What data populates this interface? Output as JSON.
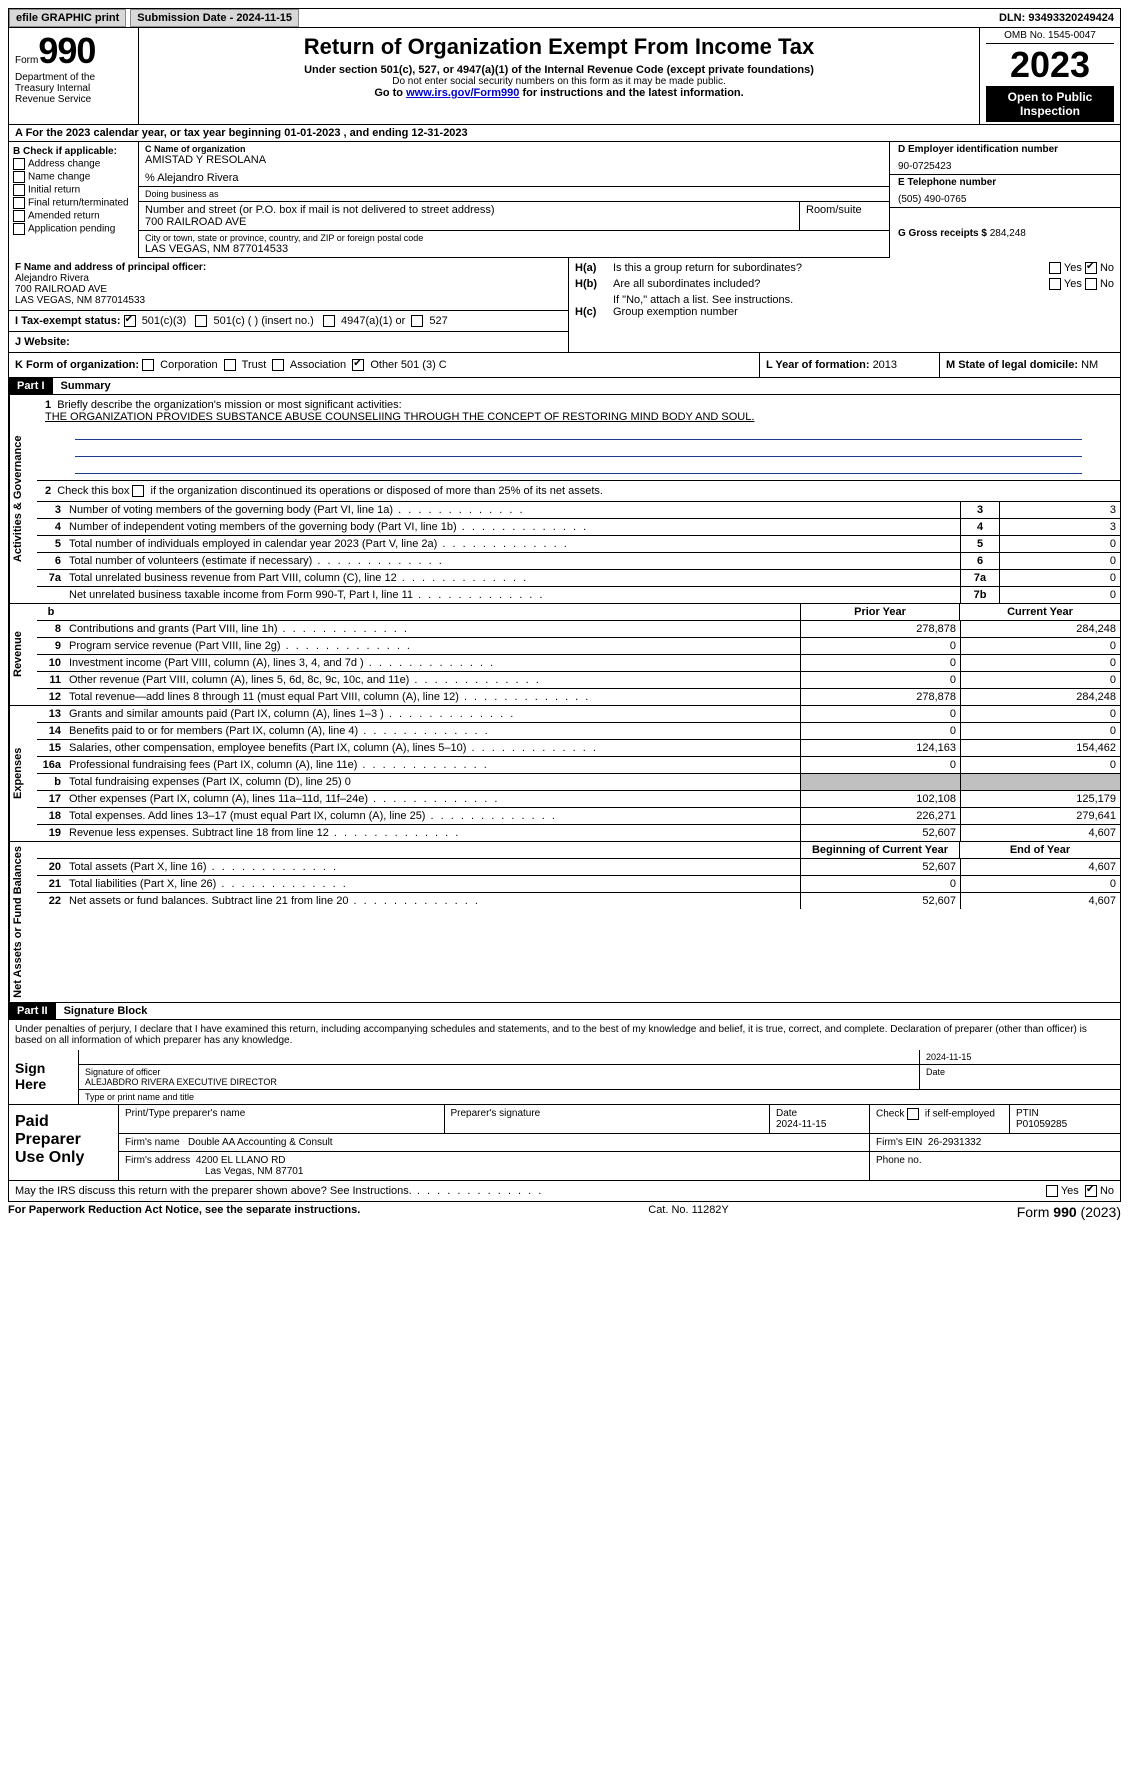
{
  "topbar": {
    "efile": "efile GRAPHIC print",
    "submission_label": "Submission Date - 2024-11-15",
    "dln_label": "DLN: 93493320249424"
  },
  "header": {
    "form_word": "Form",
    "form_num": "990",
    "dept": "Department of the Treasury Internal Revenue Service",
    "title": "Return of Organization Exempt From Income Tax",
    "subtitle": "Under section 501(c), 527, or 4947(a)(1) of the Internal Revenue Code (except private foundations)",
    "ssn_note": "Do not enter social security numbers on this form as it may be made public.",
    "goto_pre": "Go to ",
    "goto_link": "www.irs.gov/Form990",
    "goto_post": " for instructions and the latest information.",
    "omb": "OMB No. 1545-0047",
    "year": "2023",
    "open": "Open to Public Inspection"
  },
  "row_a": {
    "text_pre": "A For the 2023 calendar year, or tax year beginning ",
    "begin": "01-01-2023",
    "mid": " , and ending ",
    "end": "12-31-2023"
  },
  "col_b": {
    "header": "B Check if applicable:",
    "items": [
      "Address change",
      "Name change",
      "Initial return",
      "Final return/terminated",
      "Amended return",
      "Application pending"
    ]
  },
  "col_c": {
    "name_lbl": "C Name of organization",
    "name": "AMISTAD Y RESOLANA",
    "care_of": "% Alejandro Rivera",
    "dba_lbl": "Doing business as",
    "dba": "",
    "street_lbl": "Number and street (or P.O. box if mail is not delivered to street address)",
    "street": "700 RAILROAD AVE",
    "room_lbl": "Room/suite",
    "room": "",
    "city_lbl": "City or town, state or province, country, and ZIP or foreign postal code",
    "city": "LAS VEGAS, NM  877014533"
  },
  "col_d": {
    "ein_lbl": "D Employer identification number",
    "ein": "90-0725423",
    "phone_lbl": "E Telephone number",
    "phone": "(505) 490-0765",
    "gross_lbl": "G Gross receipts $ ",
    "gross": "284,248"
  },
  "section_f": {
    "lbl": "F Name and address of principal officer:",
    "name": "Alejandro Rivera",
    "street": "700 RAILROAD AVE",
    "city": "LAS VEGAS, NM  877014533"
  },
  "section_i": {
    "lbl": "I   Tax-exempt status:",
    "opt1": "501(c)(3)",
    "opt2": "501(c) (  ) (insert no.)",
    "opt3": "4947(a)(1) or",
    "opt4": "527"
  },
  "section_j": {
    "lbl": "J   Website:",
    "val": ""
  },
  "section_h": {
    "ha_lbl": "H(a)",
    "ha_text": "Is this a group return for subordinates?",
    "hb_lbl": "H(b)",
    "hb_text": "Are all subordinates included?",
    "hb_note": "If \"No,\" attach a list. See instructions.",
    "hc_lbl": "H(c)",
    "hc_text": "Group exemption number",
    "yes": "Yes",
    "no": "No"
  },
  "row_k": {
    "k_lbl": "K Form of organization:",
    "k_opts": [
      "Corporation",
      "Trust",
      "Association",
      "Other 501 (3) C"
    ],
    "l_lbl": "L Year of formation: ",
    "l_val": "2013",
    "m_lbl": "M State of legal domicile: ",
    "m_val": "NM"
  },
  "parts": {
    "p1": "Part I",
    "p1_title": "Summary",
    "p2": "Part II",
    "p2_title": "Signature Block"
  },
  "summary": {
    "gov_label": "Activities & Governance",
    "rev_label": "Revenue",
    "exp_label": "Expenses",
    "net_label": "Net Assets or Fund Balances",
    "line1_lbl": "Briefly describe the organization's mission or most significant activities:",
    "line1_val": "THE ORGANIZATION PROVIDES SUBSTANCE ABUSE COUNSELIING THROUGH THE CONCEPT OF RESTORING MIND BODY AND SOUL.",
    "line2": "Check this box      if the organization discontinued its operations or disposed of more than 25% of its net assets.",
    "lines_gov": [
      {
        "n": "3",
        "t": "Number of voting members of the governing body (Part VI, line 1a)",
        "box": "3",
        "v": "3"
      },
      {
        "n": "4",
        "t": "Number of independent voting members of the governing body (Part VI, line 1b)",
        "box": "4",
        "v": "3"
      },
      {
        "n": "5",
        "t": "Total number of individuals employed in calendar year 2023 (Part V, line 2a)",
        "box": "5",
        "v": "0"
      },
      {
        "n": "6",
        "t": "Total number of volunteers (estimate if necessary)",
        "box": "6",
        "v": "0"
      },
      {
        "n": "7a",
        "t": "Total unrelated business revenue from Part VIII, column (C), line 12",
        "box": "7a",
        "v": "0"
      },
      {
        "n": "",
        "t": "Net unrelated business taxable income from Form 990-T, Part I, line 11",
        "box": "7b",
        "v": "0"
      }
    ],
    "b_header": {
      "py": "Prior Year",
      "cy": "Current Year"
    },
    "lines_rev": [
      {
        "n": "8",
        "t": "Contributions and grants (Part VIII, line 1h)",
        "py": "278,878",
        "cy": "284,248"
      },
      {
        "n": "9",
        "t": "Program service revenue (Part VIII, line 2g)",
        "py": "0",
        "cy": "0"
      },
      {
        "n": "10",
        "t": "Investment income (Part VIII, column (A), lines 3, 4, and 7d )",
        "py": "0",
        "cy": "0"
      },
      {
        "n": "11",
        "t": "Other revenue (Part VIII, column (A), lines 5, 6d, 8c, 9c, 10c, and 11e)",
        "py": "0",
        "cy": "0"
      },
      {
        "n": "12",
        "t": "Total revenue—add lines 8 through 11 (must equal Part VIII, column (A), line 12)",
        "py": "278,878",
        "cy": "284,248"
      }
    ],
    "lines_exp": [
      {
        "n": "13",
        "t": "Grants and similar amounts paid (Part IX, column (A), lines 1–3 )",
        "py": "0",
        "cy": "0"
      },
      {
        "n": "14",
        "t": "Benefits paid to or for members (Part IX, column (A), line 4)",
        "py": "0",
        "cy": "0"
      },
      {
        "n": "15",
        "t": "Salaries, other compensation, employee benefits (Part IX, column (A), lines 5–10)",
        "py": "124,163",
        "cy": "154,462"
      },
      {
        "n": "16a",
        "t": "Professional fundraising fees (Part IX, column (A), line 11e)",
        "py": "0",
        "cy": "0"
      },
      {
        "n": "b",
        "t": "Total fundraising expenses (Part IX, column (D), line 25) 0",
        "py": "",
        "cy": "",
        "grey": true
      },
      {
        "n": "17",
        "t": "Other expenses (Part IX, column (A), lines 11a–11d, 11f–24e)",
        "py": "102,108",
        "cy": "125,179"
      },
      {
        "n": "18",
        "t": "Total expenses. Add lines 13–17 (must equal Part IX, column (A), line 25)",
        "py": "226,271",
        "cy": "279,641"
      },
      {
        "n": "19",
        "t": "Revenue less expenses. Subtract line 18 from line 12",
        "py": "52,607",
        "cy": "4,607"
      }
    ],
    "net_header": {
      "py": "Beginning of Current Year",
      "cy": "End of Year"
    },
    "lines_net": [
      {
        "n": "20",
        "t": "Total assets (Part X, line 16)",
        "py": "52,607",
        "cy": "4,607"
      },
      {
        "n": "21",
        "t": "Total liabilities (Part X, line 26)",
        "py": "0",
        "cy": "0"
      },
      {
        "n": "22",
        "t": "Net assets or fund balances. Subtract line 21 from line 20",
        "py": "52,607",
        "cy": "4,607"
      }
    ]
  },
  "sig": {
    "perjury": "Under penalties of perjury, I declare that I have examined this return, including accompanying schedules and statements, and to the best of my knowledge and belief, it is true, correct, and complete. Declaration of preparer (other than officer) is based on all information of which preparer has any knowledge.",
    "sign_here": "Sign Here",
    "sig_officer_lbl": "Signature of officer",
    "sig_officer": "ALEJABDRO RIVERA  EXECUTIVE DIRECTOR",
    "sig_type_lbl": "Type or print name and title",
    "date_lbl": "Date",
    "date_val": "2024-11-15"
  },
  "paid": {
    "label": "Paid Preparer Use Only",
    "r1": {
      "print_lbl": "Print/Type preparer's name",
      "print": "",
      "sig_lbl": "Preparer's signature",
      "date_lbl": "Date",
      "date": "2024-11-15",
      "check_lbl": "Check        if self-employed",
      "ptin_lbl": "PTIN",
      "ptin": "P01059285"
    },
    "r2": {
      "firm_lbl": "Firm's name",
      "firm": "Double AA Accounting & Consult",
      "ein_lbl": "Firm's EIN",
      "ein": "26-2931332"
    },
    "r3": {
      "addr_lbl": "Firm's address",
      "addr1": "4200 EL LLANO RD",
      "addr2": "Las Vegas, NM  87701",
      "phone_lbl": "Phone no.",
      "phone": ""
    }
  },
  "may_irs": {
    "text": "May the IRS discuss this return with the preparer shown above? See Instructions.",
    "yes": "Yes",
    "no": "No"
  },
  "footer": {
    "left": "For Paperwork Reduction Act Notice, see the separate instructions.",
    "mid": "Cat. No. 11282Y",
    "right_pre": "Form ",
    "right_form": "990",
    "right_post": " (2023)"
  }
}
